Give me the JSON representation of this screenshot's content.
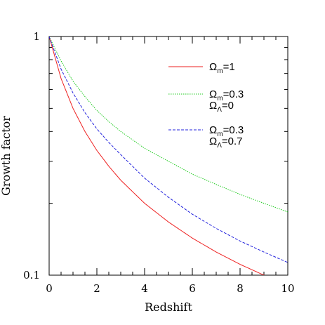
{
  "chart_data": {
    "type": "line",
    "xlabel": "Redshift",
    "ylabel": "Growth factor",
    "xlim": [
      0,
      10
    ],
    "ylim": [
      0.1,
      1
    ],
    "yscale": "log",
    "grid": false,
    "legend_position": "top-right",
    "x_ticks": [
      "0",
      "2",
      "4",
      "6",
      "8",
      "10"
    ],
    "y_ticks": [
      "1",
      "0.1"
    ],
    "x": [
      0,
      0.5,
      1,
      1.5,
      2,
      2.5,
      3,
      4,
      5,
      6,
      7,
      8,
      9,
      10
    ],
    "series": [
      {
        "legend": [
          {
            "base": "Ω",
            "sub": "m",
            "rest": "=1"
          }
        ],
        "color": "#ee2222",
        "dash": "solid",
        "values": [
          1.0,
          0.667,
          0.5,
          0.4,
          0.333,
          0.286,
          0.25,
          0.2,
          0.167,
          0.143,
          0.125,
          0.111,
          0.1,
          0.0909
        ]
      },
      {
        "legend": [
          {
            "base": "Ω",
            "sub": "m",
            "rest": "=0.3"
          },
          {
            "base": "Ω",
            "sub": "Λ",
            "rest": "=0"
          }
        ],
        "color": "#22cc22",
        "dash": "dotted",
        "values": [
          1.0,
          0.79,
          0.65,
          0.56,
          0.49,
          0.44,
          0.4,
          0.34,
          0.3,
          0.265,
          0.24,
          0.218,
          0.2,
          0.184
        ]
      },
      {
        "legend": [
          {
            "base": "Ω",
            "sub": "m",
            "rest": "=0.3"
          },
          {
            "base": "Ω",
            "sub": "Λ",
            "rest": "=0.7"
          }
        ],
        "color": "#2222dd",
        "dash": "dashed",
        "values": [
          1.0,
          0.73,
          0.58,
          0.48,
          0.41,
          0.36,
          0.32,
          0.255,
          0.212,
          0.18,
          0.157,
          0.139,
          0.125,
          0.113
        ]
      }
    ]
  }
}
